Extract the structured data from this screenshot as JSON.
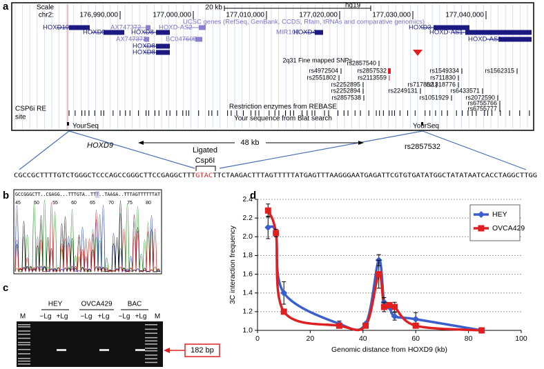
{
  "panel_labels": [
    "a",
    "b",
    "c",
    "d"
  ],
  "browser": {
    "scale_label": "Scale",
    "scale_value": "20 kb",
    "assembly": "hg19",
    "chrom": "chr2:",
    "positions": [
      "176,990,000",
      "177,000,000",
      "177,010,000",
      "177,020,000",
      "177,030,000",
      "177,040,000"
    ],
    "genes_title": "UCSC genes (RefSeq, GenBank, CCDS, Rfam, tRNAs and comparative genomics)",
    "genes": [
      "HOXD10",
      "HOXD9",
      "AX747372",
      "HOXD8",
      "HOXD-AS2",
      "MIR10B",
      "HOXD4",
      "HOXD3",
      "HOXD-AS1",
      "AX747372",
      "BC047605",
      "HOXD-AS1",
      "HOXD8",
      "HOXD8"
    ],
    "snp_title": "2q31 Fine mapped SNPs",
    "snps": [
      "rs2857540",
      "rs4972504",
      "rs2857532",
      "rs1549334",
      "rs1562315",
      "rs2551802",
      "rs2113559",
      "rs711830",
      "rs2252895",
      "rs717852",
      "rs1318776",
      "rs2252894",
      "rs2249131",
      "rs6433571",
      "rs2857538",
      "rs1051929",
      "rs2072590",
      "rs6755766",
      "rs6755777"
    ],
    "re_label": [
      "CSP6i RE",
      "site"
    ],
    "re_title": "Restriction enzymes from REBASE",
    "blat_title": "Your sequence from Blat search",
    "blat_hits": [
      "YourSeq",
      "YourSeq"
    ]
  },
  "ligation": {
    "left": "HOXD9",
    "distance": "48  kb",
    "right": "rs2857532",
    "ligated": "Ligated",
    "enzyme": "Csp6I",
    "sequence": [
      "CGCCGCTTTTGTCTGGGCTCCCAGCCGGGCTTCCGAGGCTTT",
      "GTAC",
      "TTCTAAGACTTTAGTTTTTATGAGTTTAAGGGAATGAGATTCGTGTGATATGGCTATATAATCACCTAGGCTTGG"
    ]
  },
  "chromatogram": {
    "sequence": "GCCGGGCTT..CGAGG...TTTGTA..TTT..TAAGA..TTTAGTTTTTTAT",
    "positions": [
      45,
      50,
      55,
      60,
      65,
      70,
      75,
      80
    ]
  },
  "gel": {
    "groups": [
      "HEY",
      "OVCA429",
      "BAC"
    ],
    "lanes": [
      "M",
      "−Lg",
      "+Lg",
      "−Lg",
      "+Lg",
      "−Lg",
      "+Lg",
      "M"
    ],
    "band_label": "182 bp"
  },
  "chart_data": {
    "type": "line",
    "x_label": "Genomic distance from HOXD9 (kb)",
    "y_label": "3C interaction frequency",
    "x": [
      4,
      7,
      10,
      31,
      41,
      46,
      48,
      50,
      52,
      60,
      85
    ],
    "series": [
      {
        "name": "HEY",
        "color": "#3a5fcd",
        "marker": "diamond",
        "values": [
          2.1,
          2.04,
          1.4,
          1.07,
          1.07,
          1.75,
          1.3,
          1.25,
          1.15,
          1.12,
          1.0
        ],
        "errors": [
          0.12,
          null,
          0.12,
          0.03,
          null,
          0.06,
          0.05,
          null,
          0.04,
          0.07,
          null
        ]
      },
      {
        "name": "OVCA429",
        "color": "#e02020",
        "marker": "square",
        "values": [
          2.28,
          2.04,
          1.2,
          1.05,
          1.05,
          1.6,
          1.25,
          1.27,
          1.25,
          1.05,
          1.0
        ],
        "errors": [
          0.07,
          0.04,
          null,
          null,
          null,
          0.15,
          0.05,
          null,
          0.05,
          null,
          null
        ]
      }
    ],
    "xlim": [
      0,
      100
    ],
    "xticks": [
      0,
      20,
      40,
      60,
      80,
      100
    ],
    "ylim": [
      1.0,
      2.4
    ],
    "yticks": [
      {
        "value": 1.0,
        "label": "1.0"
      },
      1.2,
      1.4,
      1.6,
      1.8,
      {
        "value": 2.0,
        "label": "2.0"
      },
      2.2,
      2.4
    ],
    "grid": true,
    "legend": "top-right"
  }
}
